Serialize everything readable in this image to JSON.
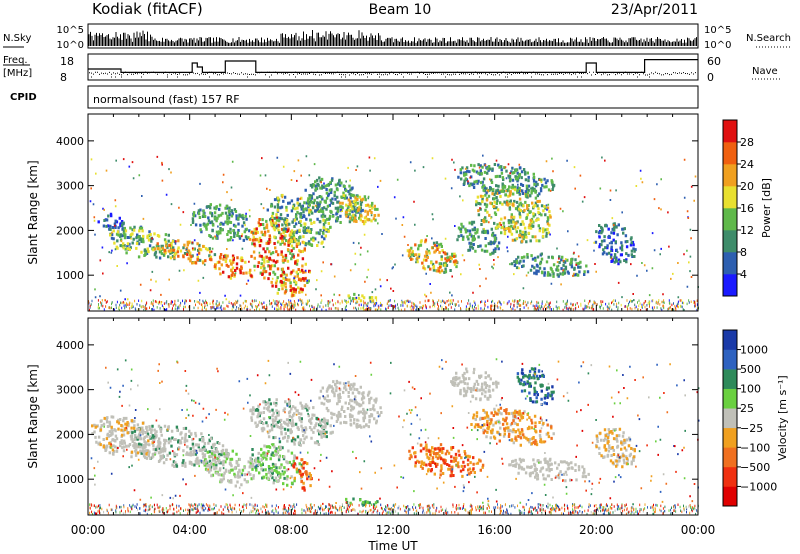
{
  "header": {
    "station": "Kodiak (fitACF)",
    "beam": "Beam 10",
    "date": "23/Apr/2011"
  },
  "strip_labels": {
    "nsky": "N.Sky",
    "nsearch": "N.Search",
    "freq_line1": "Freq.",
    "freq_line2": "[MHz]",
    "nave": "Nave",
    "cpid": "CPID",
    "mode": "normalsound (fast) 157 RF"
  },
  "chart_data": [
    {
      "type": "line",
      "name": "noise-strip",
      "left_ticks": [
        "10^5",
        "10^0"
      ],
      "right_ticks": [
        "10^5",
        "10^0"
      ]
    },
    {
      "type": "line",
      "name": "frequency-strip",
      "left_ticks": [
        "18",
        "8"
      ],
      "right_ticks": [
        "60",
        "0"
      ],
      "freq_mhz": {
        "x_hours": [
          0,
          1.3,
          1.3,
          4.1,
          4.1,
          4.3,
          4.3,
          4.5,
          4.5,
          5.4,
          5.4,
          6.6,
          6.6,
          19.6,
          19.6,
          20.0,
          20.0,
          21.9,
          21.9,
          24
        ],
        "y": [
          12.5,
          12.5,
          10.8,
          10.8,
          15.5,
          15.5,
          13.5,
          13.5,
          10.8,
          10.8,
          16.5,
          16.5,
          10.8,
          10.8,
          15.5,
          15.5,
          10.8,
          10.8,
          17.2,
          17.2
        ]
      },
      "nave_approx": 20
    },
    {
      "type": "heatmap",
      "name": "power",
      "ylabel": "Slant Range [km]",
      "yticks": [
        1000,
        2000,
        3000,
        4000
      ],
      "ylim": [
        200,
        4600
      ],
      "xlim_hours": [
        0,
        24
      ],
      "colorbar": {
        "label": "Power [dB]",
        "ticks": [
          "4",
          "8",
          "12",
          "16",
          "20",
          "24",
          "28"
        ],
        "colors": [
          "#1a1aff",
          "#2d5fb0",
          "#3e8c6a",
          "#5fb84a",
          "#e8e030",
          "#f0a020",
          "#f06010",
          "#e01010"
        ]
      }
    },
    {
      "type": "heatmap",
      "name": "velocity",
      "ylabel": "Slant Range [km]",
      "yticks": [
        1000,
        2000,
        3000,
        4000
      ],
      "ylim": [
        200,
        4600
      ],
      "xlim_hours": [
        0,
        24
      ],
      "xticks": [
        "00:00",
        "04:00",
        "08:00",
        "12:00",
        "16:00",
        "20:00",
        "00:00"
      ],
      "xlabel": "Time UT",
      "colorbar": {
        "label": "Velocity [m s⁻¹]",
        "ticks": [
          "1000",
          "500",
          "100",
          "25",
          "−25",
          "−100",
          "−500",
          "−1000"
        ],
        "colors": [
          "#1a3aa8",
          "#2e62c0",
          "#2e8a5a",
          "#6ad040",
          "#c0c0b8",
          "#f0a020",
          "#f07020",
          "#f03010",
          "#e00000"
        ]
      }
    }
  ],
  "echo_regions": {
    "power": [
      {
        "t0": 0.3,
        "t1": 1.4,
        "r0": 2000,
        "r1": 2400,
        "c": [
          0,
          1,
          1,
          2
        ]
      },
      {
        "t0": 0.8,
        "t1": 3.6,
        "r0": 1400,
        "r1": 2100,
        "c": [
          1,
          2,
          3,
          4
        ]
      },
      {
        "t0": 2.5,
        "t1": 5.0,
        "r0": 1300,
        "r1": 1800,
        "c": [
          2,
          4,
          5,
          6
        ]
      },
      {
        "t0": 4.0,
        "t1": 6.5,
        "r0": 1800,
        "r1": 2600,
        "c": [
          1,
          2,
          3
        ]
      },
      {
        "t0": 4.9,
        "t1": 6.5,
        "r0": 900,
        "r1": 1500,
        "c": [
          4,
          5,
          6,
          7
        ]
      },
      {
        "t0": 6.3,
        "t1": 8.7,
        "r0": 600,
        "r1": 2300,
        "c": [
          3,
          4,
          5,
          6,
          7
        ]
      },
      {
        "t0": 7.0,
        "t1": 9.6,
        "r0": 1700,
        "r1": 2800,
        "c": [
          1,
          2,
          3,
          4
        ]
      },
      {
        "t0": 8.5,
        "t1": 10.8,
        "r0": 2200,
        "r1": 3200,
        "c": [
          1,
          2,
          3
        ]
      },
      {
        "t0": 9.8,
        "t1": 11.4,
        "r0": 2200,
        "r1": 2900,
        "c": [
          3,
          4,
          5
        ]
      },
      {
        "t0": 10.0,
        "t1": 11.5,
        "r0": 450,
        "r1": 600,
        "c": [
          3,
          4
        ]
      },
      {
        "t0": 12.5,
        "t1": 14.5,
        "r0": 1100,
        "r1": 1800,
        "c": [
          2,
          3,
          4,
          5,
          6
        ]
      },
      {
        "t0": 14.4,
        "t1": 16.2,
        "r0": 1500,
        "r1": 2200,
        "c": [
          1,
          2,
          3
        ]
      },
      {
        "t0": 15.2,
        "t1": 18.3,
        "r0": 1800,
        "r1": 3000,
        "c": [
          2,
          3,
          4,
          5
        ]
      },
      {
        "t0": 14.4,
        "t1": 18.3,
        "r0": 2800,
        "r1": 3500,
        "c": [
          1,
          2,
          3
        ]
      },
      {
        "t0": 16.6,
        "t1": 19.7,
        "r0": 1000,
        "r1": 1500,
        "c": [
          1,
          2,
          3
        ]
      },
      {
        "t0": 19.9,
        "t1": 21.5,
        "r0": 1300,
        "r1": 2200,
        "c": [
          0,
          1,
          2
        ]
      }
    ],
    "velocity": [
      {
        "t0": 0.0,
        "t1": 3.0,
        "r0": 1500,
        "r1": 2400,
        "c": [
          4,
          4,
          4,
          4,
          5
        ]
      },
      {
        "t0": 1.5,
        "t1": 5.5,
        "r0": 1300,
        "r1": 2200,
        "c": [
          4,
          4,
          4,
          2
        ]
      },
      {
        "t0": 4.5,
        "t1": 6.5,
        "r0": 900,
        "r1": 1700,
        "c": [
          4,
          4,
          3
        ]
      },
      {
        "t0": 6.3,
        "t1": 8.4,
        "r0": 900,
        "r1": 1800,
        "c": [
          3,
          2,
          3,
          4
        ]
      },
      {
        "t0": 6.3,
        "t1": 9.6,
        "r0": 1800,
        "r1": 2800,
        "c": [
          4,
          4,
          2,
          4
        ]
      },
      {
        "t0": 8.0,
        "t1": 8.8,
        "r0": 800,
        "r1": 1500,
        "c": [
          5,
          6,
          7
        ]
      },
      {
        "t0": 9.0,
        "t1": 11.5,
        "r0": 2200,
        "r1": 3200,
        "c": [
          4,
          4,
          4
        ]
      },
      {
        "t0": 10.0,
        "t1": 11.5,
        "r0": 450,
        "r1": 600,
        "c": [
          3,
          2
        ]
      },
      {
        "t0": 12.5,
        "t1": 15.5,
        "r0": 1100,
        "r1": 1800,
        "c": [
          5,
          6,
          7,
          5
        ]
      },
      {
        "t0": 15.0,
        "t1": 18.3,
        "r0": 1800,
        "r1": 2600,
        "c": [
          5,
          6,
          5,
          4
        ]
      },
      {
        "t0": 14.2,
        "t1": 16.2,
        "r0": 2800,
        "r1": 3500,
        "c": [
          4,
          4,
          4
        ]
      },
      {
        "t0": 16.8,
        "t1": 18.3,
        "r0": 2700,
        "r1": 3500,
        "c": [
          1,
          2,
          0
        ]
      },
      {
        "t0": 16.5,
        "t1": 19.7,
        "r0": 1000,
        "r1": 1500,
        "c": [
          4,
          4,
          4
        ]
      },
      {
        "t0": 19.9,
        "t1": 21.5,
        "r0": 1300,
        "r1": 2200,
        "c": [
          4,
          4,
          5
        ]
      }
    ]
  }
}
